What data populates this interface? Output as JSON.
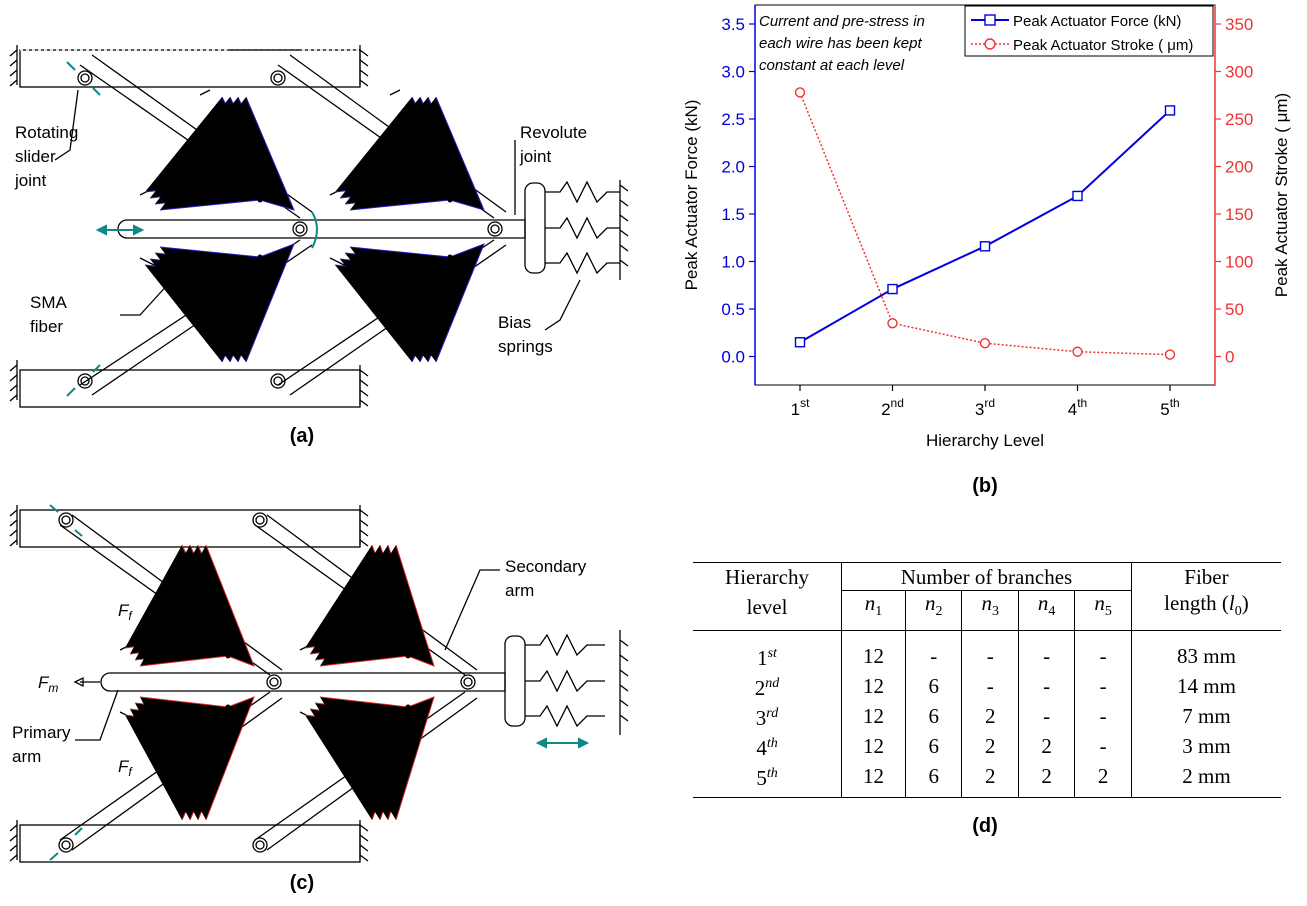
{
  "panel_a": {
    "caption": "(a)",
    "labels": {
      "rotating1": "Rotating",
      "rotating2": "slider",
      "rotating3": "joint",
      "revolute1": "Revolute",
      "revolute2": "joint",
      "sma1": "SMA",
      "sma2": "fiber",
      "bias1": "Bias",
      "bias2": "springs"
    }
  },
  "panel_b": {
    "caption": "(b)",
    "annotation": [
      "Current and pre-stress in",
      "each wire has been kept",
      "constant at each level"
    ],
    "colors": {
      "force": "#0000dd",
      "stroke": "#ee3333"
    }
  },
  "panel_c": {
    "caption": "(c)",
    "labels": {
      "secondary1": "Secondary",
      "secondary2": "arm",
      "primary1": "Primary",
      "primary2": "arm",
      "fm": "F",
      "fm_sub": "m",
      "ff": "F",
      "ff_sub": "f"
    }
  },
  "panel_d": {
    "caption": "(d)",
    "headers": {
      "col1_line1": "Hierarchy",
      "col1_line2": "level",
      "branches": "Number of branches",
      "fiber_line1": "Fiber",
      "fiber_line2": "length (",
      "fiber_sym": "l",
      "fiber_sub": "0",
      "fiber_close": ")",
      "n": [
        "n",
        "n",
        "n",
        "n",
        "n"
      ],
      "n_sub": [
        "1",
        "2",
        "3",
        "4",
        "5"
      ]
    },
    "rows": [
      {
        "level": "1",
        "sup": "st",
        "n1": "12",
        "n2": "-",
        "n3": "-",
        "n4": "-",
        "n5": "-",
        "fiber": "83 mm"
      },
      {
        "level": "2",
        "sup": "nd",
        "n1": "12",
        "n2": "6",
        "n3": "-",
        "n4": "-",
        "n5": "-",
        "fiber": "14 mm"
      },
      {
        "level": "3",
        "sup": "rd",
        "n1": "12",
        "n2": "6",
        "n3": "2",
        "n4": "-",
        "n5": "-",
        "fiber": "7 mm"
      },
      {
        "level": "4",
        "sup": "th",
        "n1": "12",
        "n2": "6",
        "n3": "2",
        "n4": "2",
        "n5": "-",
        "fiber": "3 mm"
      },
      {
        "level": "5",
        "sup": "th",
        "n1": "12",
        "n2": "6",
        "n3": "2",
        "n4": "2",
        "n5": "2",
        "fiber": "2 mm"
      }
    ]
  },
  "chart_data": {
    "type": "line",
    "title": "",
    "xlabel": "Hierarchy Level",
    "ylabel": "Peak Actuator Force (kN)",
    "y2label": "Peak Actuator Stroke ( μm)",
    "categories": [
      "1st",
      "2nd",
      "3rd",
      "4th",
      "5th"
    ],
    "x_tick_base": [
      "1",
      "2",
      "3",
      "4",
      "5"
    ],
    "x_tick_sup": [
      "st",
      "nd",
      "rd",
      "th",
      "th"
    ],
    "ylim": [
      -0.3,
      3.7
    ],
    "y_ticks": [
      "0.0",
      "0.5",
      "1.0",
      "1.5",
      "2.0",
      "2.5",
      "3.0",
      "3.5"
    ],
    "y2lim": [
      -30,
      370
    ],
    "y2_ticks": [
      "0",
      "50",
      "100",
      "150",
      "200",
      "250",
      "300",
      "350"
    ],
    "legend_position": "top-right",
    "series": [
      {
        "name": "Peak Actuator Force (kN)",
        "axis": "left",
        "marker": "square",
        "line": "solid",
        "color": "#0000dd",
        "values": [
          0.15,
          0.71,
          1.16,
          1.69,
          2.59
        ]
      },
      {
        "name": "Peak Actuator Stroke ( μm)",
        "axis": "right",
        "marker": "circle",
        "line": "dotted",
        "color": "#ee3333",
        "values": [
          278,
          35,
          14,
          5,
          2
        ]
      }
    ]
  }
}
